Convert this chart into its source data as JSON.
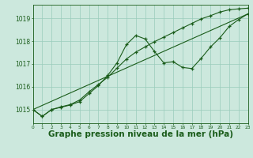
{
  "bg_color": "#cce8dd",
  "line_color": "#1a5c1a",
  "grid_color": "#99ccbb",
  "xlabel": "Graphe pression niveau de la mer (hPa)",
  "xlabel_fontsize": 7.5,
  "ylim": [
    1014.4,
    1019.6
  ],
  "xlim": [
    0,
    23
  ],
  "yticks": [
    1015,
    1016,
    1017,
    1018,
    1019
  ],
  "xticks": [
    0,
    1,
    2,
    3,
    4,
    5,
    6,
    7,
    8,
    9,
    10,
    11,
    12,
    13,
    14,
    15,
    16,
    17,
    18,
    19,
    20,
    21,
    22,
    23
  ],
  "line1_x": [
    0,
    1,
    2,
    3,
    4,
    5,
    6,
    7,
    8,
    9,
    10,
    11,
    12,
    13,
    14,
    15,
    16,
    17,
    18,
    19,
    20,
    21,
    22,
    23
  ],
  "line1_y": [
    1015.0,
    1014.7,
    1015.0,
    1015.1,
    1015.2,
    1015.35,
    1015.7,
    1016.05,
    1016.5,
    1017.05,
    1017.85,
    1018.25,
    1018.1,
    1017.55,
    1017.05,
    1017.1,
    1016.85,
    1016.8,
    1017.25,
    1017.75,
    1018.15,
    1018.65,
    1018.95,
    1019.2
  ],
  "line2_x": [
    0,
    23
  ],
  "line2_y": [
    1015.0,
    1019.2
  ],
  "line3_x": [
    0,
    1,
    2,
    3,
    4,
    5,
    6,
    7,
    8,
    9,
    10,
    11,
    12,
    13,
    14,
    15,
    16,
    17,
    18,
    19,
    20,
    21,
    22,
    23
  ],
  "line3_y": [
    1015.0,
    1014.7,
    1015.0,
    1015.12,
    1015.22,
    1015.42,
    1015.78,
    1016.1,
    1016.42,
    1016.82,
    1017.22,
    1017.52,
    1017.75,
    1017.98,
    1018.18,
    1018.38,
    1018.58,
    1018.78,
    1018.98,
    1019.12,
    1019.28,
    1019.38,
    1019.42,
    1019.45
  ]
}
